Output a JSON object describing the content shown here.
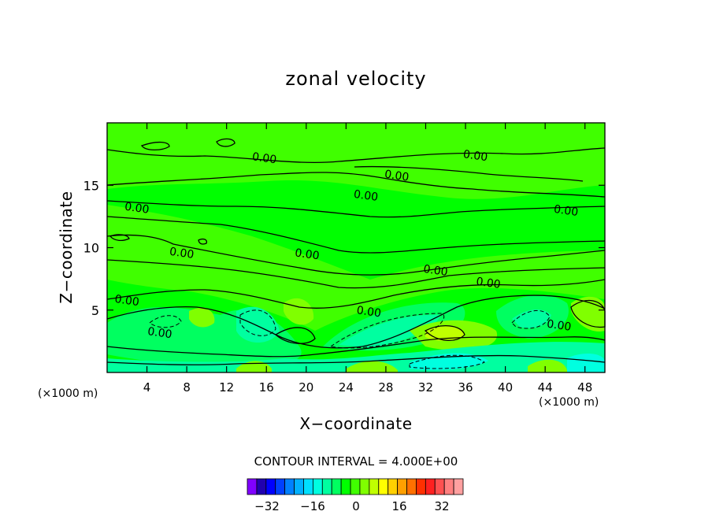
{
  "chart_data": {
    "type": "heatmap",
    "title": "zonal velocity",
    "xlabel": "X−coordinate",
    "ylabel": "Z−coordinate",
    "x_unit": "(×1000 m)",
    "xlim": [
      0,
      50
    ],
    "ylim": [
      0,
      20
    ],
    "x_ticks": [
      4,
      8,
      12,
      16,
      20,
      24,
      28,
      32,
      36,
      40,
      44,
      48
    ],
    "y_ticks": [
      5,
      10,
      15
    ],
    "contour_interval_text": "CONTOUR INTERVAL = 4.000E+00",
    "contour_labels": [
      {
        "x": 15.8,
        "y": 17.2,
        "text": "0.00"
      },
      {
        "x": 29.1,
        "y": 15.8,
        "text": "0.00"
      },
      {
        "x": 37.0,
        "y": 17.4,
        "text": "0.00"
      },
      {
        "x": 26.0,
        "y": 14.2,
        "text": "0.00"
      },
      {
        "x": 3.0,
        "y": 13.2,
        "text": "0.00"
      },
      {
        "x": 46.1,
        "y": 13.0,
        "text": "0.00"
      },
      {
        "x": 7.5,
        "y": 9.6,
        "text": "0.00"
      },
      {
        "x": 20.1,
        "y": 9.5,
        "text": "0.00"
      },
      {
        "x": 33.0,
        "y": 8.2,
        "text": "0.00"
      },
      {
        "x": 38.3,
        "y": 7.2,
        "text": "0.00"
      },
      {
        "x": 2.0,
        "y": 5.8,
        "text": "0.00"
      },
      {
        "x": 5.3,
        "y": 3.2,
        "text": "0.00"
      },
      {
        "x": 26.3,
        "y": 4.9,
        "text": "0.00"
      },
      {
        "x": 45.4,
        "y": 3.8,
        "text": "0.00"
      }
    ],
    "colorbar": {
      "colors": [
        "#8000ff",
        "#2000b0",
        "#0000ff",
        "#0040ff",
        "#0080ff",
        "#00b0ff",
        "#00e0ff",
        "#00ffe0",
        "#00ffa0",
        "#00ff60",
        "#00ff00",
        "#40ff00",
        "#80ff00",
        "#c0ff00",
        "#ffff00",
        "#ffd000",
        "#ffa000",
        "#ff7000",
        "#ff3000",
        "#ff2020",
        "#ff5050",
        "#ff8080",
        "#ffa0a0"
      ],
      "ticks": [
        "−32",
        "−16",
        "0",
        "16",
        "32"
      ]
    }
  }
}
